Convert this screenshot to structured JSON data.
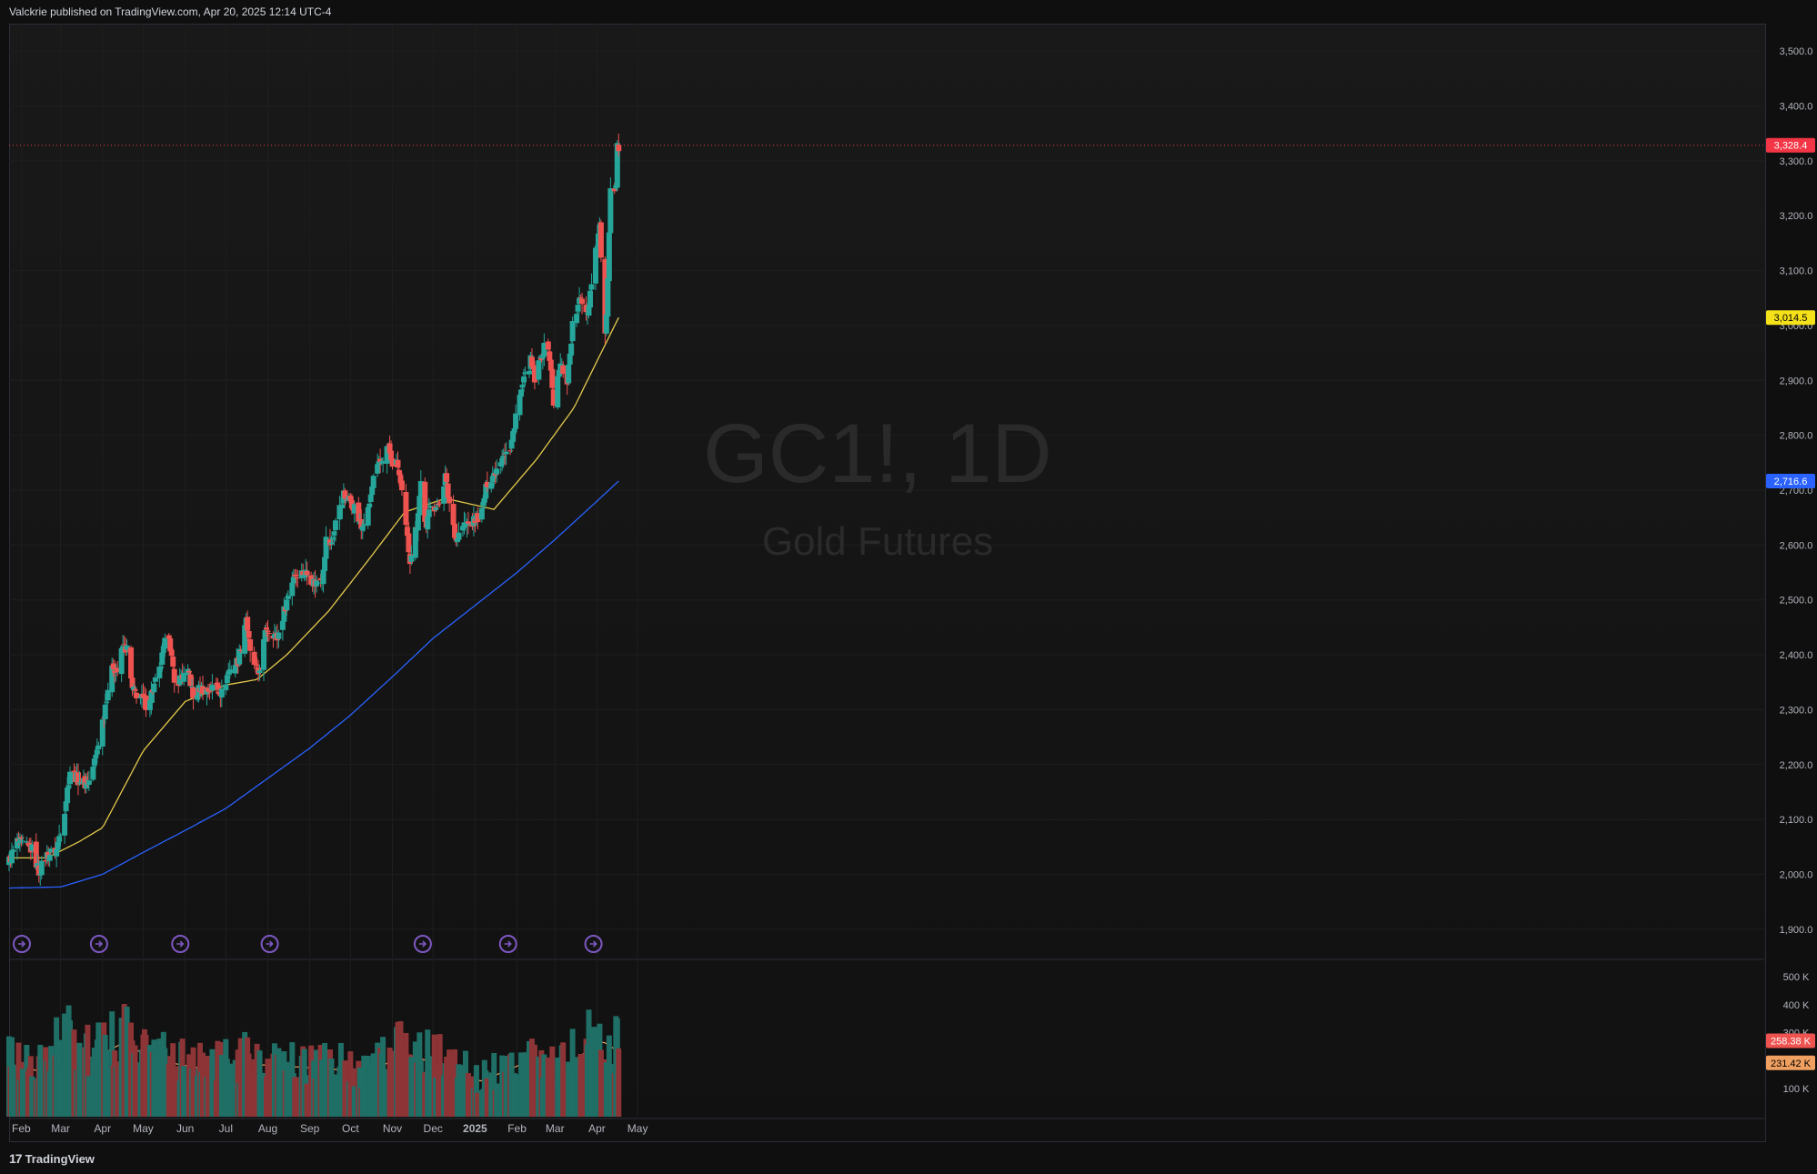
{
  "header": {
    "published_line": "Valckrie published on TradingView.com, Apr 20, 2025 12:14 UTC-4"
  },
  "footer": {
    "brand": "TradingView",
    "logo_glyph": "17"
  },
  "watermark": {
    "symbol": "GC1!, 1D",
    "name": "Gold Futures"
  },
  "colors": {
    "up": "#26a69a",
    "down": "#ef5350",
    "ma_fast": "#e3c94b",
    "ma_slow": "#2962ff",
    "vol_up": "#1f6f66",
    "vol_down": "#8d3436",
    "vol_ma": "#f0a060",
    "grid": "#1e1e1e"
  },
  "chart_data": [
    {
      "type": "candlestick",
      "symbol": "GC1!",
      "interval": "1D",
      "ylim": [
        1850,
        3550
      ],
      "price_ticks": [
        "1,900.0",
        "2,000.0",
        "2,100.0",
        "2,200.0",
        "2,300.0",
        "2,400.0",
        "2,500.0",
        "2,600.0",
        "2,700.0",
        "2,800.0",
        "2,900.0",
        "3,000.0",
        "3,100.0",
        "3,200.0",
        "3,300.0",
        "3,400.0",
        "3,500.0"
      ],
      "time_labels": [
        {
          "label": "Feb",
          "date": "2024-02-01"
        },
        {
          "label": "Mar",
          "date": "2024-03-01"
        },
        {
          "label": "Apr",
          "date": "2024-04-01"
        },
        {
          "label": "May",
          "date": "2024-05-01"
        },
        {
          "label": "Jun",
          "date": "2024-06-01"
        },
        {
          "label": "Jul",
          "date": "2024-07-01"
        },
        {
          "label": "Aug",
          "date": "2024-08-01"
        },
        {
          "label": "Sep",
          "date": "2024-09-01"
        },
        {
          "label": "Oct",
          "date": "2024-10-01"
        },
        {
          "label": "Nov",
          "date": "2024-11-01"
        },
        {
          "label": "Dec",
          "date": "2024-12-01"
        },
        {
          "label": "2025",
          "date": "2025-01-01"
        },
        {
          "label": "Feb",
          "date": "2025-02-01"
        },
        {
          "label": "Mar",
          "date": "2025-03-01"
        },
        {
          "label": "Apr",
          "date": "2025-04-01"
        },
        {
          "label": "May",
          "date": "2025-05-01"
        }
      ],
      "close_anchors": [
        [
          "2024-01-23",
          2025
        ],
        [
          "2024-01-29",
          2060
        ],
        [
          "2024-02-05",
          2050
        ],
        [
          "2024-02-09",
          2045
        ],
        [
          "2024-02-14",
          2005
        ],
        [
          "2024-02-20",
          2035
        ],
        [
          "2024-02-27",
          2045
        ],
        [
          "2024-03-04",
          2120
        ],
        [
          "2024-03-08",
          2190
        ],
        [
          "2024-03-13",
          2175
        ],
        [
          "2024-03-19",
          2165
        ],
        [
          "2024-03-22",
          2170
        ],
        [
          "2024-03-27",
          2215
        ],
        [
          "2024-04-01",
          2280
        ],
        [
          "2024-04-05",
          2340
        ],
        [
          "2024-04-09",
          2380
        ],
        [
          "2024-04-12",
          2370
        ],
        [
          "2024-04-16",
          2415
        ],
        [
          "2024-04-19",
          2410
        ],
        [
          "2024-04-23",
          2335
        ],
        [
          "2024-04-30",
          2320
        ],
        [
          "2024-05-03",
          2310
        ],
        [
          "2024-05-07",
          2330
        ],
        [
          "2024-05-13",
          2370
        ],
        [
          "2024-05-17",
          2420
        ],
        [
          "2024-05-20",
          2440
        ],
        [
          "2024-05-24",
          2345
        ],
        [
          "2024-05-29",
          2360
        ],
        [
          "2024-06-04",
          2365
        ],
        [
          "2024-06-07",
          2320
        ],
        [
          "2024-06-12",
          2340
        ],
        [
          "2024-06-18",
          2335
        ],
        [
          "2024-06-24",
          2345
        ],
        [
          "2024-06-28",
          2330
        ],
        [
          "2024-07-03",
          2370
        ],
        [
          "2024-07-10",
          2390
        ],
        [
          "2024-07-16",
          2470
        ],
        [
          "2024-07-19",
          2400
        ],
        [
          "2024-07-25",
          2365
        ],
        [
          "2024-07-31",
          2450
        ],
        [
          "2024-08-05",
          2440
        ],
        [
          "2024-08-08",
          2430
        ],
        [
          "2024-08-14",
          2490
        ],
        [
          "2024-08-20",
          2545
        ],
        [
          "2024-08-23",
          2550
        ],
        [
          "2024-08-29",
          2550
        ],
        [
          "2024-09-05",
          2530
        ],
        [
          "2024-09-10",
          2540
        ],
        [
          "2024-09-13",
          2610
        ],
        [
          "2024-09-17",
          2600
        ],
        [
          "2024-09-20",
          2645
        ],
        [
          "2024-09-26",
          2690
        ],
        [
          "2024-10-01",
          2680
        ],
        [
          "2024-10-04",
          2670
        ],
        [
          "2024-10-09",
          2630
        ],
        [
          "2024-10-14",
          2660
        ],
        [
          "2024-10-18",
          2720
        ],
        [
          "2024-10-23",
          2750
        ],
        [
          "2024-10-29",
          2780
        ],
        [
          "2024-10-31",
          2750
        ],
        [
          "2024-11-05",
          2745
        ],
        [
          "2024-11-08",
          2690
        ],
        [
          "2024-11-12",
          2610
        ],
        [
          "2024-11-14",
          2575
        ],
        [
          "2024-11-19",
          2640
        ],
        [
          "2024-11-22",
          2715
        ],
        [
          "2024-11-26",
          2625
        ],
        [
          "2024-11-29",
          2680
        ],
        [
          "2024-12-04",
          2665
        ],
        [
          "2024-12-10",
          2725
        ],
        [
          "2024-12-12",
          2690
        ],
        [
          "2024-12-18",
          2610
        ],
        [
          "2024-12-23",
          2635
        ],
        [
          "2024-12-30",
          2640
        ],
        [
          "2025-01-06",
          2660
        ],
        [
          "2025-01-10",
          2715
        ],
        [
          "2025-01-15",
          2730
        ],
        [
          "2025-01-22",
          2770
        ],
        [
          "2025-01-27",
          2770
        ],
        [
          "2025-01-31",
          2840
        ],
        [
          "2025-02-05",
          2890
        ],
        [
          "2025-02-11",
          2935
        ],
        [
          "2025-02-14",
          2900
        ],
        [
          "2025-02-20",
          2955
        ],
        [
          "2025-02-24",
          2965
        ],
        [
          "2025-02-28",
          2860
        ],
        [
          "2025-03-05",
          2930
        ],
        [
          "2025-03-10",
          2900
        ],
        [
          "2025-03-14",
          3000
        ],
        [
          "2025-03-20",
          3050
        ],
        [
          "2025-03-25",
          3025
        ],
        [
          "2025-03-31",
          3140
        ],
        [
          "2025-04-03",
          3180
        ],
        [
          "2025-04-07",
          2975
        ],
        [
          "2025-04-09",
          3080
        ],
        [
          "2025-04-11",
          3240
        ],
        [
          "2025-04-15",
          3245
        ],
        [
          "2025-04-16",
          3340
        ],
        [
          "2025-04-17",
          3328.4
        ]
      ],
      "ma_fast_anchors": [
        [
          "2024-01-23",
          2030
        ],
        [
          "2024-02-20",
          2030
        ],
        [
          "2024-03-15",
          2060
        ],
        [
          "2024-04-01",
          2085
        ],
        [
          "2024-05-01",
          2225
        ],
        [
          "2024-06-01",
          2315
        ],
        [
          "2024-07-01",
          2345
        ],
        [
          "2024-07-24",
          2355
        ],
        [
          "2024-08-15",
          2400
        ],
        [
          "2024-09-15",
          2480
        ],
        [
          "2024-10-15",
          2575
        ],
        [
          "2024-11-10",
          2660
        ],
        [
          "2024-12-10",
          2685
        ],
        [
          "2025-01-15",
          2665
        ],
        [
          "2025-02-15",
          2755
        ],
        [
          "2025-03-15",
          2850
        ],
        [
          "2025-04-01",
          2935
        ],
        [
          "2025-04-17",
          3014.5
        ]
      ],
      "ma_slow_anchors": [
        [
          "2024-01-23",
          1975
        ],
        [
          "2024-03-01",
          1977
        ],
        [
          "2024-04-01",
          2000
        ],
        [
          "2024-05-01",
          2040
        ],
        [
          "2024-06-01",
          2080
        ],
        [
          "2024-07-01",
          2120
        ],
        [
          "2024-08-01",
          2175
        ],
        [
          "2024-09-01",
          2230
        ],
        [
          "2024-10-01",
          2290
        ],
        [
          "2024-11-01",
          2360
        ],
        [
          "2024-12-01",
          2430
        ],
        [
          "2025-01-01",
          2490
        ],
        [
          "2025-02-01",
          2550
        ],
        [
          "2025-03-01",
          2610
        ],
        [
          "2025-04-01",
          2680
        ],
        [
          "2025-04-17",
          2716.6
        ]
      ],
      "last_price": {
        "value": 3328.4,
        "label": "3,328.4",
        "color": "#f23645"
      },
      "ma_fast_label": {
        "value": 3014.5,
        "label": "3,014.5",
        "color": "#f5e11a"
      },
      "ma_slow_label": {
        "value": 2716.6,
        "label": "2,716.6",
        "color": "#2962ff"
      },
      "dividend_marker_dates": [
        "2024-01-23",
        "2024-03-20",
        "2024-05-19",
        "2024-07-24",
        "2024-11-14",
        "2025-01-16",
        "2025-03-20"
      ]
    },
    {
      "type": "volume_bar",
      "ylim": [
        0,
        520000
      ],
      "volume_ticks": [
        "100 K",
        "300 K",
        "400 K",
        "500 K"
      ],
      "volume_tick_values": [
        100000,
        300000,
        400000,
        500000
      ],
      "current_volume": {
        "value": 258380,
        "label": "258.38 K",
        "color": "#ef5350"
      },
      "volume_ma": {
        "value": 231420,
        "label": "231.42 K",
        "color": "#f0a060"
      },
      "volume_anchors": [
        [
          "2024-01-23",
          210000
        ],
        [
          "2024-02-15",
          180000
        ],
        [
          "2024-03-05",
          290000
        ],
        [
          "2024-03-25",
          230000
        ],
        [
          "2024-04-15",
          290000
        ],
        [
          "2024-05-15",
          220000
        ],
        [
          "2024-06-15",
          190000
        ],
        [
          "2024-07-15",
          210000
        ],
        [
          "2024-08-15",
          200000
        ],
        [
          "2024-09-15",
          190000
        ],
        [
          "2024-10-15",
          175000
        ],
        [
          "2024-11-10",
          250000
        ],
        [
          "2024-12-10",
          200000
        ],
        [
          "2025-01-05",
          140000
        ],
        [
          "2025-02-05",
          210000
        ],
        [
          "2025-03-05",
          190000
        ],
        [
          "2025-04-05",
          300000
        ],
        [
          "2025-04-17",
          258380
        ]
      ]
    }
  ]
}
